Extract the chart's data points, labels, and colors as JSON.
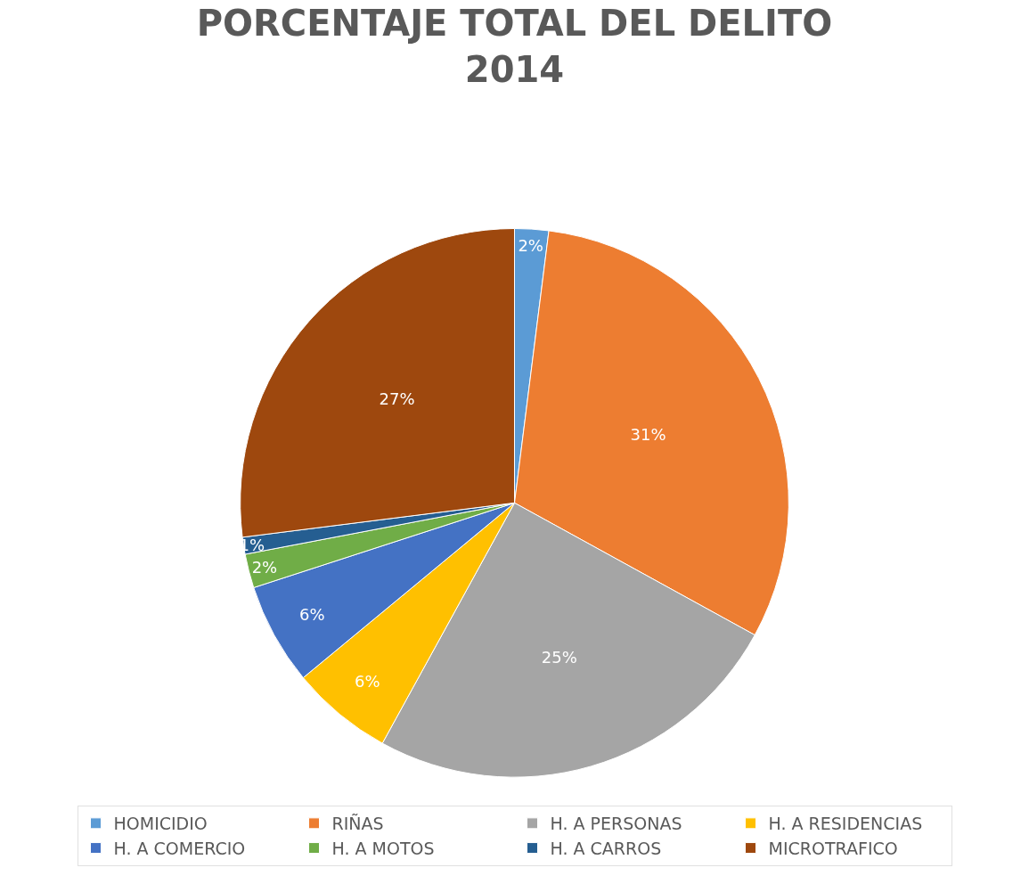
{
  "chart_data": {
    "type": "pie",
    "title": "PORCENTAJE TOTAL DEL DELITO\n2014",
    "categories": [
      "HOMICIDIO",
      "RIÑAS",
      "H. A PERSONAS",
      "H. A RESIDENCIAS",
      "H. A COMERCIO",
      "H. A MOTOS",
      "H. A CARROS",
      "MICROTRAFICO"
    ],
    "values": [
      2,
      31,
      25,
      6,
      6,
      2,
      1,
      27
    ],
    "value_labels": [
      "2%",
      "31%",
      "25%",
      "6%",
      "6%",
      "2%",
      "1%",
      "27%"
    ],
    "colors": [
      "#5b9bd5",
      "#ed7d31",
      "#a5a5a5",
      "#ffc000",
      "#4472c4",
      "#70ad47",
      "#255e91",
      "#9e480e"
    ],
    "legend": "bottom"
  }
}
